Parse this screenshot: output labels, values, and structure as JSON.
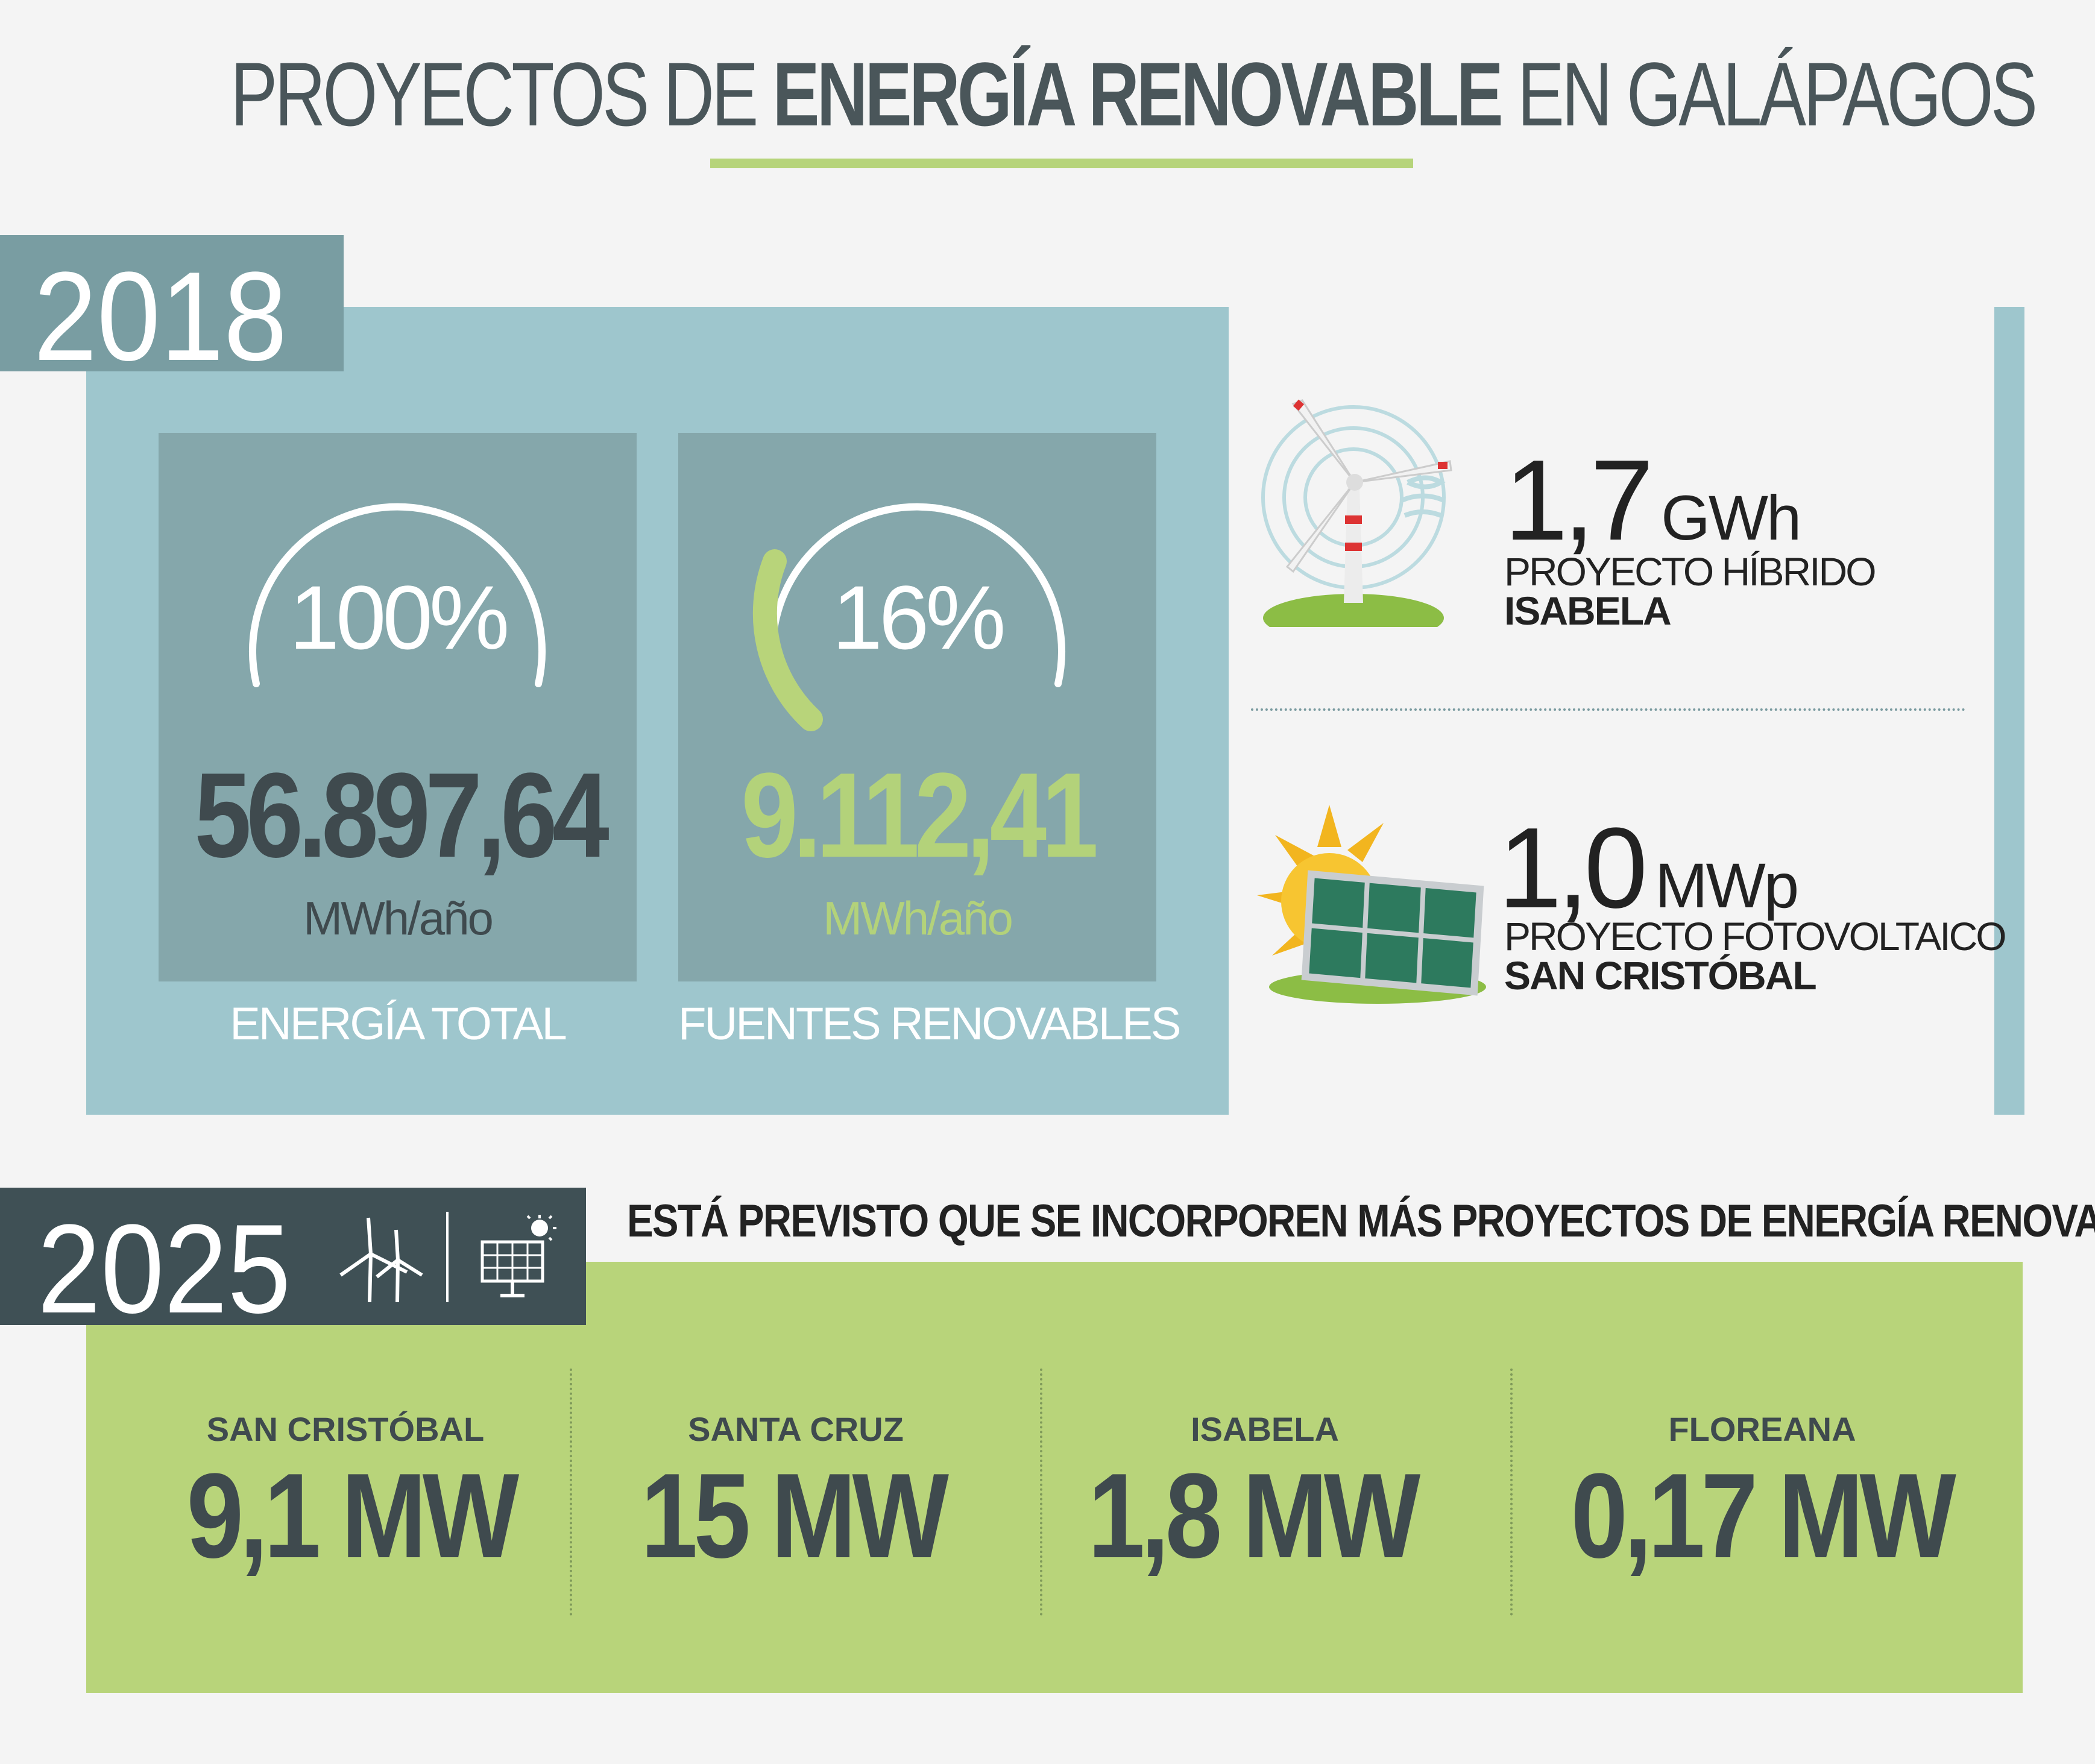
{
  "title": {
    "light_prefix": "PROYECTOS DE ",
    "bold": "ENERGÍA RENOVABLE",
    "light_suffix": " EN GALÁPAGOS"
  },
  "year_2018": {
    "year": "2018",
    "total": {
      "percent": "100%",
      "value": "56.897,64",
      "unit": "MWh/año",
      "caption": "ENERGÍA TOTAL",
      "share": 1.0
    },
    "renewable": {
      "percent": "16%",
      "value": "9.112,41",
      "unit": "MWh/año",
      "caption": "FUENTES RENOVABLES",
      "share": 0.16
    },
    "projects": [
      {
        "value": "1,7",
        "unit": "GWh",
        "line1": "PROYECTO HÍBRIDO",
        "line2": "ISABELA",
        "icon": "wind-turbine-icon"
      },
      {
        "value": "1,0",
        "unit": "MWp",
        "line1": "PROYECTO FOTOVOLTAICO",
        "line2": "SAN CRISTÓBAL",
        "icon": "solar-panel-icon"
      }
    ]
  },
  "year_2025": {
    "year": "2025",
    "headline": "ESTÁ PREVISTO QUE SE INCORPOREN MÁS PROYECTOS DE ENERGÍA RENOVABLE",
    "icons": [
      "wind-turbines-icon",
      "solar-panel-icon"
    ],
    "islands": [
      {
        "name": "SAN CRISTÓBAL",
        "value": "9,1 MW"
      },
      {
        "name": "SANTA CRUZ",
        "value": "15 MW"
      },
      {
        "name": "ISABELA",
        "value": "1,8 MW"
      },
      {
        "name": "FLOREANA",
        "value": "0,17 MW"
      }
    ]
  },
  "colors": {
    "background": "#f4f4f4",
    "panel_blue": "#9ec6cd",
    "card_blue": "#85a7ab",
    "tab_2018": "#799da2",
    "tab_2025": "#3f5055",
    "green": "#b8d47a",
    "dark_text": "#3f4a4e"
  }
}
